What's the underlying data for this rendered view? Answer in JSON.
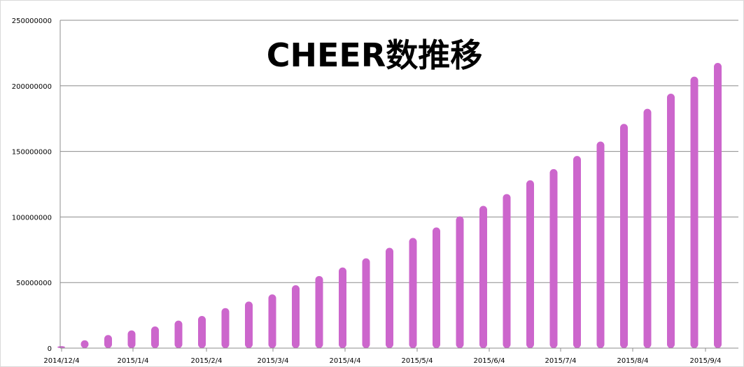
{
  "chart_data": {
    "type": "bar",
    "title": "CHEER数推移",
    "xlabel": "",
    "ylabel": "",
    "ylim": [
      0,
      250000000
    ],
    "yticks": [
      0,
      50000000,
      100000000,
      150000000,
      200000000,
      250000000
    ],
    "ytick_labels": [
      "0",
      "50000000",
      "100000000",
      "150000000",
      "200000000",
      "250000000"
    ],
    "x_tick_labels": [
      "2014/12/4",
      "2015/1/4",
      "2015/2/4",
      "2015/3/4",
      "2015/4/4",
      "2015/5/4",
      "2015/6/4",
      "2015/7/4",
      "2015/8/4",
      "2015/9/4"
    ],
    "grid": true,
    "bar_color": "#cc66cc",
    "values": [
      1500000,
      6000000,
      10000000,
      13500000,
      16500000,
      21000000,
      24500000,
      30500000,
      35500000,
      41000000,
      48000000,
      55000000,
      61500000,
      68500000,
      76500000,
      84000000,
      92000000,
      100500000,
      108500000,
      117500000,
      128000000,
      136500000,
      146500000,
      157500000,
      171000000,
      182500000,
      194000000,
      207000000,
      217500000
    ]
  }
}
